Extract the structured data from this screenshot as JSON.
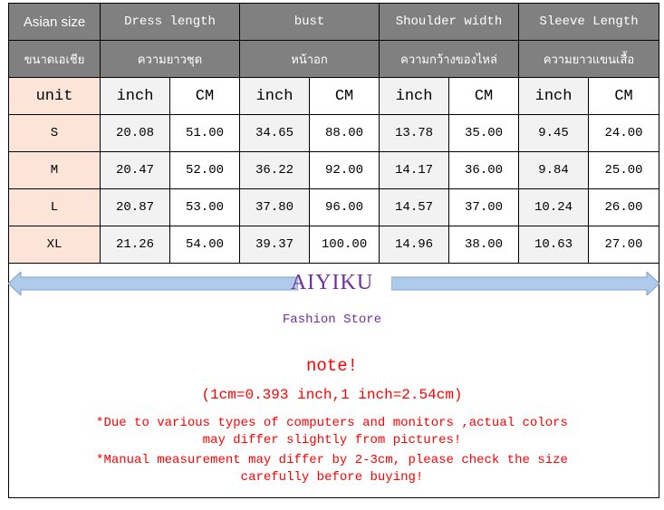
{
  "header": {
    "asian_size": "Asian size",
    "asian_size_th": "ขนาดเอเชีย",
    "columns": [
      {
        "en": "Dress length",
        "th": "ความยาวชุด"
      },
      {
        "en": "bust",
        "th": "หน้าอก"
      },
      {
        "en": "Shoulder width",
        "th": "ความกว้างของไหล่"
      },
      {
        "en": "Sleeve Length",
        "th": "ความยาวแขนเสื้อ"
      }
    ]
  },
  "units": {
    "label": "unit",
    "inch": "inch",
    "cm": "CM"
  },
  "rows": [
    {
      "size": "S",
      "values": [
        "20.08",
        "51.00",
        "34.65",
        "88.00",
        "13.78",
        "35.00",
        "9.45",
        "24.00"
      ]
    },
    {
      "size": "M",
      "values": [
        "20.47",
        "52.00",
        "36.22",
        "92.00",
        "14.17",
        "36.00",
        "9.84",
        "25.00"
      ]
    },
    {
      "size": "L",
      "values": [
        "20.87",
        "53.00",
        "37.80",
        "96.00",
        "14.57",
        "37.00",
        "10.24",
        "26.00"
      ]
    },
    {
      "size": "XL",
      "values": [
        "21.26",
        "54.00",
        "39.37",
        "100.00",
        "14.96",
        "38.00",
        "10.63",
        "27.00"
      ]
    }
  ],
  "brand": "AIYIKU",
  "store": "Fashion Store",
  "note_title": "note!",
  "conversion": "(1cm=0.393 inch,1 inch=2.54cm)",
  "notes": [
    "*Due to various types of computers and monitors ,actual colors",
    "may differ slightly from pictures!",
    "*Manual measurement may differ by 2-3cm, please check the size",
    "carefully before  buying!"
  ],
  "colors": {
    "header_bg": "#808080",
    "unit_bg": "#fde4d8",
    "inch_bg": "#f2f2f2",
    "brand": "#7030a0",
    "note": "#ff0000",
    "arrow": "#aecbea"
  }
}
